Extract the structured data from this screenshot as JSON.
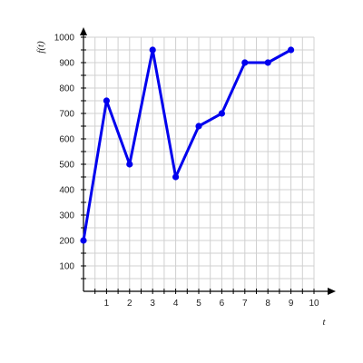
{
  "chart_data": {
    "type": "line",
    "title": "",
    "xlabel": "t",
    "ylabel": "f(t)",
    "xlim": [
      0,
      10
    ],
    "ylim": [
      0,
      1000
    ],
    "x_minor_step": 0.5,
    "y_minor_step": 50,
    "x_ticks": [
      1,
      2,
      3,
      4,
      5,
      6,
      7,
      8,
      9,
      10
    ],
    "y_ticks": [
      100,
      200,
      300,
      400,
      500,
      600,
      700,
      800,
      900,
      1000
    ],
    "grid": true,
    "series": [
      {
        "color": "#0000ee",
        "points": [
          {
            "x": 0,
            "y": 200
          },
          {
            "x": 1,
            "y": 750
          },
          {
            "x": 2,
            "y": 500
          },
          {
            "x": 3,
            "y": 950
          },
          {
            "x": 4,
            "y": 450
          },
          {
            "x": 5,
            "y": 650
          },
          {
            "x": 6,
            "y": 700
          },
          {
            "x": 7,
            "y": 900
          },
          {
            "x": 8,
            "y": 900
          },
          {
            "x": 9,
            "y": 950
          }
        ]
      }
    ]
  }
}
